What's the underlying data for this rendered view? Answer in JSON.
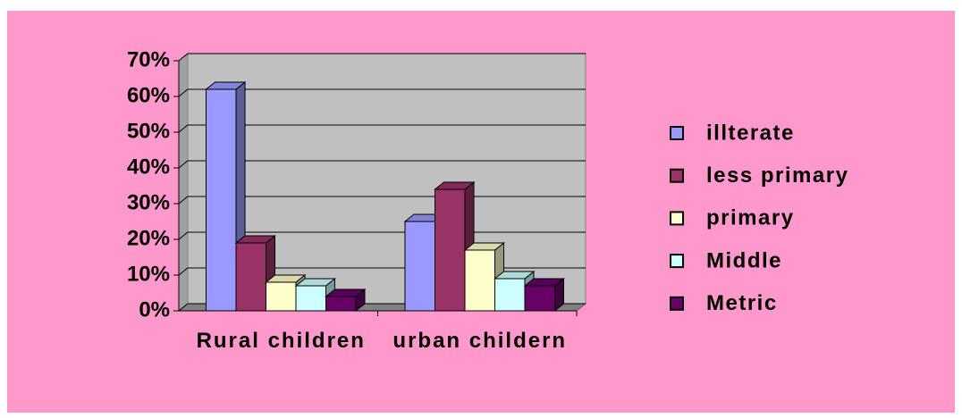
{
  "chart_data": {
    "type": "bar3d",
    "categories": [
      "Rural children",
      "urban childern"
    ],
    "series": [
      {
        "name": "illterate",
        "color": "#9999ff",
        "values": [
          62,
          25
        ]
      },
      {
        "name": "less primary",
        "color": "#993366",
        "values": [
          19,
          34
        ]
      },
      {
        "name": "primary",
        "color": "#ffffcc",
        "values": [
          8,
          17
        ]
      },
      {
        "name": "Middle",
        "color": "#ccffff",
        "values": [
          7,
          9
        ]
      },
      {
        "name": "Metric",
        "color": "#660066",
        "values": [
          4,
          7
        ]
      }
    ],
    "ylim": [
      0,
      70
    ],
    "yticks": [
      {
        "value": 0,
        "label": "0%"
      },
      {
        "value": 10,
        "label": "10%"
      },
      {
        "value": 20,
        "label": "20%"
      },
      {
        "value": 30,
        "label": "30%"
      },
      {
        "value": 40,
        "label": "40%"
      },
      {
        "value": 50,
        "label": "50%"
      },
      {
        "value": 60,
        "label": "60%"
      },
      {
        "value": 70,
        "label": "70%"
      }
    ],
    "grid": true,
    "legend": "right"
  }
}
